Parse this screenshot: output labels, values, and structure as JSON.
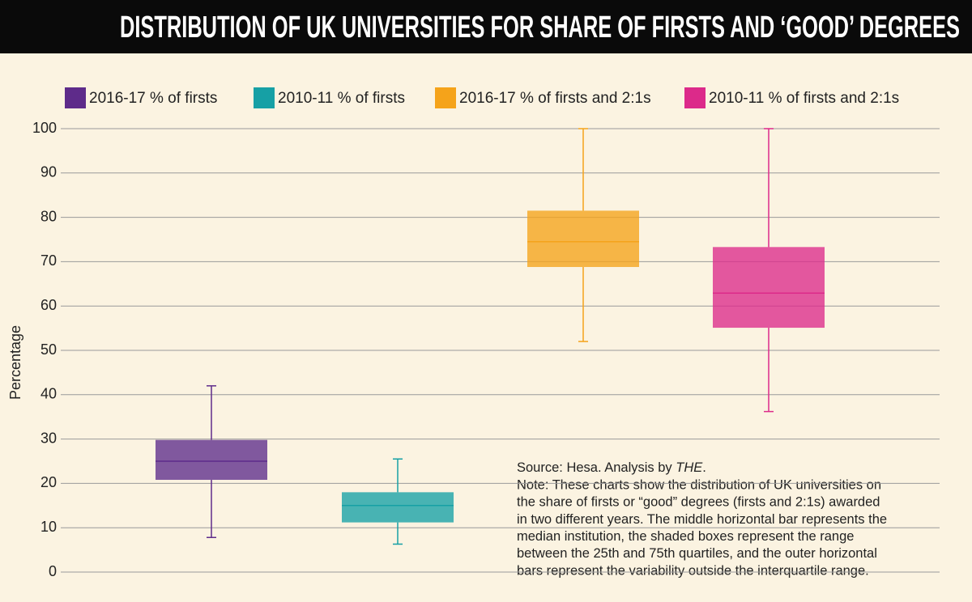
{
  "chart_data": {
    "type": "box",
    "title": "DISTRIBUTION OF UK UNIVERSITIES FOR SHARE OF FIRSTS AND ‘GOOD’ DEGREES",
    "y_label": "Percentage",
    "series": [
      {
        "name": "2016-17 % of firsts",
        "color": "#5e2b8a",
        "min": 7.8,
        "q1": 20.8,
        "median": 25,
        "q3": 29.8,
        "max": 42
      },
      {
        "name": "2010-11 % of firsts",
        "color": "#16a0a5",
        "min": 6.3,
        "q1": 11.2,
        "median": 15,
        "q3": 18,
        "max": 25.5
      },
      {
        "name": "2016-17 % of firsts and 2:1s",
        "color": "#f5a31a",
        "min": 52,
        "q1": 68.8,
        "median": 74.5,
        "q3": 81.5,
        "max": 100
      },
      {
        "name": "2010-11 % of firsts and 2:1s",
        "color": "#dc2a8a",
        "min": 36.2,
        "q1": 55.1,
        "median": 62.9,
        "q3": 73.3,
        "max": 100
      }
    ],
    "ylim": [
      0,
      100
    ],
    "yticks": [
      0,
      10,
      20,
      30,
      40,
      50,
      60,
      70,
      80,
      90,
      100
    ],
    "grid": true,
    "source": {
      "text": "Source: Hesa. Analysis by ",
      "emphasis": "THE",
      "end": "."
    },
    "note_lines": [
      "Note: These charts show the distribution of UK universities on",
      "the share of firsts or “good” degrees (firsts and 2:1s) awarded",
      "in two different years. The middle horizontal bar represents the",
      "median institution, the shaded boxes represent the range",
      "between the 25th and 75th quartiles, and the outer horizontal",
      "bars represent the variability outside the interquartile range."
    ]
  }
}
